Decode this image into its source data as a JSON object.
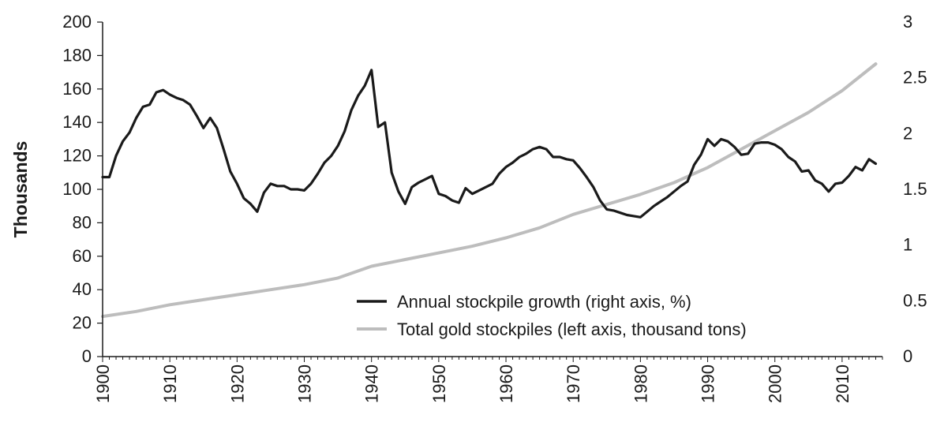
{
  "chart_data": {
    "type": "line",
    "title": "",
    "xlabel": "",
    "ylabel": "Thousands",
    "y2label": "",
    "xlim": [
      1900,
      2016
    ],
    "ylim": [
      0,
      200
    ],
    "y2lim": [
      0,
      3
    ],
    "x_ticks": [
      "1900",
      "1910",
      "1920",
      "1930",
      "1940",
      "1950",
      "1960",
      "1970",
      "1980",
      "1990",
      "2000",
      "2010"
    ],
    "y_ticks": [
      "0",
      "20",
      "40",
      "60",
      "80",
      "100",
      "120",
      "140",
      "160",
      "180",
      "200"
    ],
    "y2_ticks": [
      "0",
      "0.5",
      "1",
      "1.5",
      "2",
      "2.5",
      "3"
    ],
    "grid": false,
    "legend_position": "bottom-right",
    "series": [
      {
        "name": "Annual stockpile growth (right axis, %)",
        "axis": "right",
        "color": "#1a1a1a",
        "points": [
          [
            1900,
            1.61
          ],
          [
            1901,
            1.61
          ],
          [
            1902,
            1.8
          ],
          [
            1903,
            1.93
          ],
          [
            1904,
            2.01
          ],
          [
            1905,
            2.14
          ],
          [
            1906,
            2.24
          ],
          [
            1907,
            2.26
          ],
          [
            1908,
            2.37
          ],
          [
            1909,
            2.39
          ],
          [
            1910,
            2.35
          ],
          [
            1911,
            2.32
          ],
          [
            1912,
            2.3
          ],
          [
            1913,
            2.26
          ],
          [
            1914,
            2.16
          ],
          [
            1915,
            2.05
          ],
          [
            1916,
            2.14
          ],
          [
            1917,
            2.05
          ],
          [
            1918,
            1.86
          ],
          [
            1919,
            1.66
          ],
          [
            1920,
            1.55
          ],
          [
            1921,
            1.42
          ],
          [
            1922,
            1.37
          ],
          [
            1923,
            1.3
          ],
          [
            1924,
            1.47
          ],
          [
            1925,
            1.55
          ],
          [
            1926,
            1.53
          ],
          [
            1927,
            1.53
          ],
          [
            1928,
            1.5
          ],
          [
            1929,
            1.5
          ],
          [
            1930,
            1.49
          ],
          [
            1931,
            1.55
          ],
          [
            1932,
            1.64
          ],
          [
            1933,
            1.74
          ],
          [
            1934,
            1.8
          ],
          [
            1935,
            1.89
          ],
          [
            1936,
            2.02
          ],
          [
            1937,
            2.21
          ],
          [
            1938,
            2.34
          ],
          [
            1939,
            2.43
          ],
          [
            1940,
            2.57
          ],
          [
            1941,
            2.06
          ],
          [
            1942,
            2.1
          ],
          [
            1943,
            1.65
          ],
          [
            1944,
            1.48
          ],
          [
            1945,
            1.37
          ],
          [
            1946,
            1.52
          ],
          [
            1947,
            1.56
          ],
          [
            1948,
            1.59
          ],
          [
            1949,
            1.62
          ],
          [
            1950,
            1.46
          ],
          [
            1951,
            1.44
          ],
          [
            1952,
            1.4
          ],
          [
            1953,
            1.38
          ],
          [
            1954,
            1.51
          ],
          [
            1955,
            1.46
          ],
          [
            1956,
            1.49
          ],
          [
            1957,
            1.52
          ],
          [
            1958,
            1.55
          ],
          [
            1959,
            1.64
          ],
          [
            1960,
            1.7
          ],
          [
            1961,
            1.74
          ],
          [
            1962,
            1.79
          ],
          [
            1963,
            1.82
          ],
          [
            1964,
            1.86
          ],
          [
            1965,
            1.88
          ],
          [
            1966,
            1.86
          ],
          [
            1967,
            1.79
          ],
          [
            1968,
            1.79
          ],
          [
            1969,
            1.77
          ],
          [
            1970,
            1.76
          ],
          [
            1971,
            1.69
          ],
          [
            1972,
            1.61
          ],
          [
            1973,
            1.52
          ],
          [
            1974,
            1.4
          ],
          [
            1975,
            1.32
          ],
          [
            1976,
            1.31
          ],
          [
            1977,
            1.29
          ],
          [
            1978,
            1.27
          ],
          [
            1979,
            1.26
          ],
          [
            1980,
            1.25
          ],
          [
            1981,
            1.3
          ],
          [
            1982,
            1.35
          ],
          [
            1983,
            1.39
          ],
          [
            1984,
            1.43
          ],
          [
            1985,
            1.48
          ],
          [
            1986,
            1.53
          ],
          [
            1987,
            1.57
          ],
          [
            1988,
            1.72
          ],
          [
            1989,
            1.81
          ],
          [
            1990,
            1.95
          ],
          [
            1991,
            1.89
          ],
          [
            1992,
            1.95
          ],
          [
            1993,
            1.93
          ],
          [
            1994,
            1.88
          ],
          [
            1995,
            1.81
          ],
          [
            1996,
            1.82
          ],
          [
            1997,
            1.91
          ],
          [
            1998,
            1.92
          ],
          [
            1999,
            1.92
          ],
          [
            2000,
            1.9
          ],
          [
            2001,
            1.86
          ],
          [
            2002,
            1.79
          ],
          [
            2003,
            1.75
          ],
          [
            2004,
            1.66
          ],
          [
            2005,
            1.67
          ],
          [
            2006,
            1.58
          ],
          [
            2007,
            1.55
          ],
          [
            2008,
            1.48
          ],
          [
            2009,
            1.55
          ],
          [
            2010,
            1.56
          ],
          [
            2011,
            1.62
          ],
          [
            2012,
            1.7
          ],
          [
            2013,
            1.67
          ],
          [
            2014,
            1.77
          ],
          [
            2015,
            1.73
          ]
        ]
      },
      {
        "name": "Total gold stockpiles (left axis, thousand tons)",
        "axis": "left",
        "color": "#bdbdbd",
        "points": [
          [
            1900,
            24
          ],
          [
            1905,
            27
          ],
          [
            1910,
            31
          ],
          [
            1915,
            34
          ],
          [
            1920,
            37
          ],
          [
            1925,
            40
          ],
          [
            1930,
            43
          ],
          [
            1935,
            47
          ],
          [
            1940,
            54
          ],
          [
            1945,
            58
          ],
          [
            1950,
            62
          ],
          [
            1955,
            66
          ],
          [
            1960,
            71
          ],
          [
            1965,
            77
          ],
          [
            1970,
            85
          ],
          [
            1975,
            91
          ],
          [
            1980,
            97
          ],
          [
            1985,
            104
          ],
          [
            1990,
            113
          ],
          [
            1995,
            124
          ],
          [
            2000,
            135
          ],
          [
            2005,
            146
          ],
          [
            2010,
            159
          ],
          [
            2015,
            175
          ]
        ]
      }
    ]
  }
}
